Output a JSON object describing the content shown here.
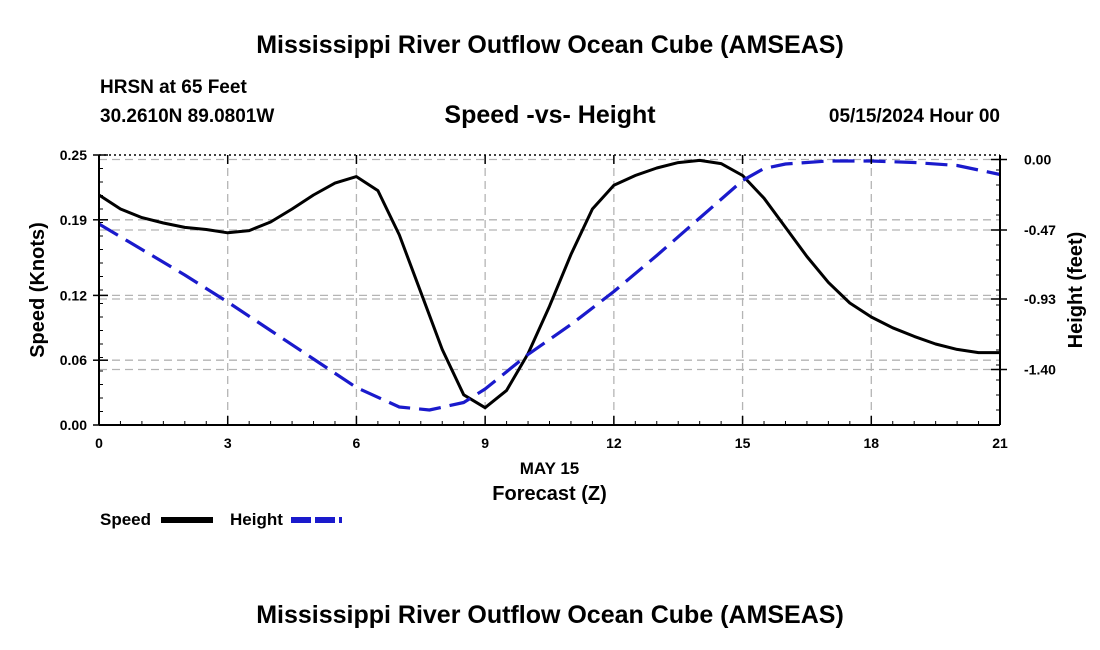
{
  "header": {
    "main_title": "Mississippi River Outflow Ocean Cube (AMSEAS)",
    "station": "HRSN at 65 Feet",
    "coords": "30.2610N  89.0801W",
    "chart_title": "Speed -vs- Height",
    "datetime": "05/15/2024 Hour 00"
  },
  "legend": {
    "speed_label": "Speed",
    "height_label": "Height"
  },
  "footer": {
    "repeat_title": "Mississippi River Outflow Ocean Cube (AMSEAS)"
  },
  "colors": {
    "speed": "#000000",
    "height": "#1a1acc",
    "grid": "#b4b4b4"
  },
  "chart_data": {
    "type": "line",
    "title": "Speed -vs- Height",
    "xlabel": "Forecast (Z)",
    "xsublabel": "MAY 15",
    "ylabel": "Speed (Knots)",
    "y2label": "Height (feet)",
    "xlim": [
      0,
      21
    ],
    "ylim": [
      0,
      0.25
    ],
    "y2lim": [
      -1.77,
      0.03
    ],
    "xticks": [
      0,
      3,
      6,
      9,
      12,
      15,
      18,
      21
    ],
    "xtick_labels": [
      "0",
      "3",
      "6",
      "9",
      "12",
      "15",
      "18",
      "21"
    ],
    "yticks": [
      0,
      0.06,
      0.12,
      0.19,
      0.25
    ],
    "ytick_labels": [
      "0.00",
      "0.06",
      "0.12",
      "0.19",
      "0.25"
    ],
    "y2ticks": [
      0.0,
      -0.47,
      -0.93,
      -1.4
    ],
    "y2tick_labels": [
      "0.00",
      "-0.47",
      "-0.93",
      "-1.40"
    ],
    "series": [
      {
        "name": "Speed",
        "axis": "left",
        "style": "solid",
        "x": [
          0,
          0.5,
          1,
          1.5,
          2,
          2.5,
          3,
          3.5,
          4,
          4.5,
          5,
          5.5,
          6,
          6.5,
          7,
          7.5,
          8,
          8.5,
          9,
          9.5,
          10,
          10.5,
          11,
          11.5,
          12,
          12.5,
          13,
          13.5,
          14,
          14.5,
          15,
          15.5,
          16,
          16.5,
          17,
          17.5,
          18,
          18.5,
          19,
          19.5,
          20,
          20.5,
          21
        ],
        "values": [
          0.213,
          0.2,
          0.192,
          0.187,
          0.183,
          0.181,
          0.178,
          0.18,
          0.188,
          0.2,
          0.213,
          0.224,
          0.23,
          0.217,
          0.176,
          0.123,
          0.07,
          0.028,
          0.016,
          0.032,
          0.066,
          0.11,
          0.158,
          0.2,
          0.222,
          0.231,
          0.238,
          0.243,
          0.245,
          0.242,
          0.231,
          0.21,
          0.183,
          0.156,
          0.132,
          0.113,
          0.1,
          0.09,
          0.082,
          0.075,
          0.07,
          0.067,
          0.067
        ]
      },
      {
        "name": "Height",
        "axis": "right",
        "style": "dashed",
        "x": [
          0,
          1,
          2,
          3,
          4,
          5,
          6,
          7,
          7.7,
          8.5,
          9,
          10,
          11,
          12,
          13,
          14,
          15,
          15.5,
          16,
          17,
          18,
          19,
          20,
          21
        ],
        "values": [
          -0.43,
          -0.6,
          -0.77,
          -0.95,
          -1.14,
          -1.33,
          -1.52,
          -1.65,
          -1.67,
          -1.62,
          -1.53,
          -1.3,
          -1.1,
          -0.88,
          -0.64,
          -0.39,
          -0.14,
          -0.06,
          -0.03,
          -0.01,
          -0.01,
          -0.02,
          -0.04,
          -0.1
        ]
      }
    ]
  }
}
